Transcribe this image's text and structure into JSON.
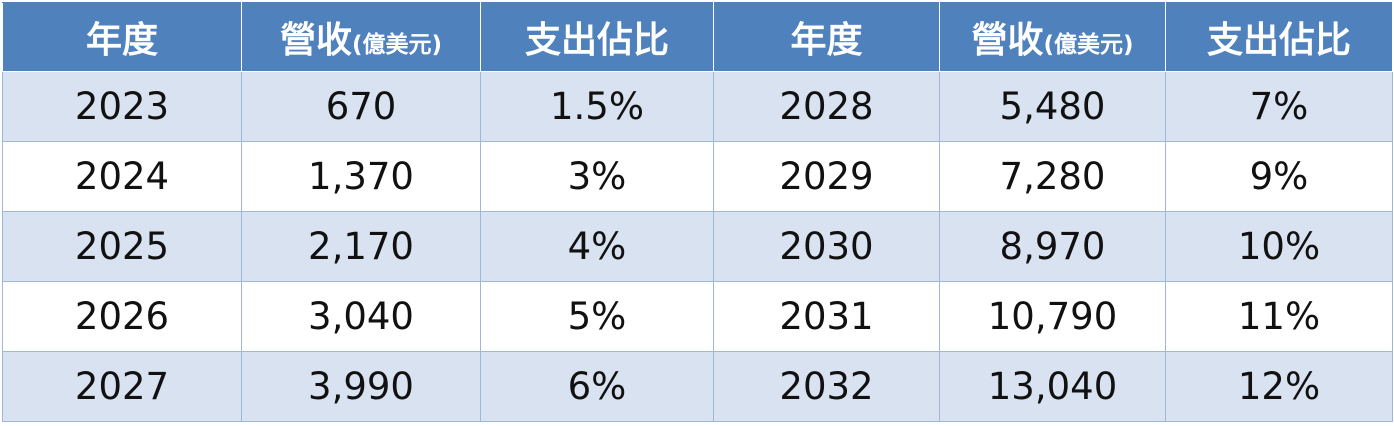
{
  "headers": {
    "year": "年度",
    "revenue": "營收",
    "revenue_unit": "(億美元)",
    "share": "支出佔比"
  },
  "chart_data": {
    "type": "table",
    "columns": [
      "年度",
      "營收(億美元)",
      "支出佔比",
      "年度",
      "營收(億美元)",
      "支出佔比"
    ],
    "rows": [
      [
        "2023",
        "670",
        "1.5%",
        "2028",
        "5,480",
        "7%"
      ],
      [
        "2024",
        "1,370",
        "3%",
        "2029",
        "7,280",
        "9%"
      ],
      [
        "2025",
        "2,170",
        "4%",
        "2030",
        "8,970",
        "10%"
      ],
      [
        "2026",
        "3,040",
        "5%",
        "2031",
        "10,790",
        "11%"
      ],
      [
        "2027",
        "3,990",
        "6%",
        "2032",
        "13,040",
        "12%"
      ]
    ],
    "header_color": "#4f81bd",
    "stripe_color": "#d9e2f0",
    "grid": true
  }
}
